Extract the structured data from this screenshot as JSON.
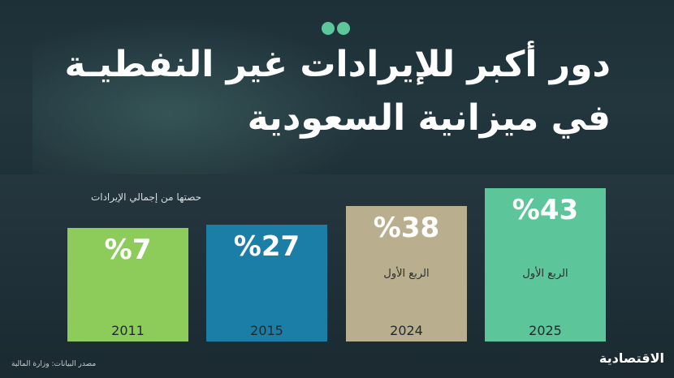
{
  "header": {
    "title_line1": "دور أكبر للإيرادات غير النفطيـة",
    "title_line2": "في ميزانية السعودية",
    "dots_icon": "two-dots-icon"
  },
  "chart_data": {
    "type": "bar",
    "subtitle": "حصتها من إجمالي الإيرادات",
    "categories": [
      "2011",
      "2015",
      "2024",
      "2025"
    ],
    "values": [
      7,
      27,
      38,
      43
    ],
    "value_labels": [
      "%7",
      "%27",
      "%38",
      "%43"
    ],
    "period_labels": [
      "",
      "",
      "الربع الأول",
      "الربع الأول"
    ],
    "colors": [
      "#8dcc5b",
      "#1a7ea6",
      "#b9ae8d",
      "#5cc59a"
    ],
    "unit": "%",
    "ylim": [
      0,
      43
    ],
    "grid": false,
    "legend": "none"
  },
  "footer": {
    "source": "مصدر البيانات: وزارة المالية",
    "logo": "الاقتصادية"
  }
}
